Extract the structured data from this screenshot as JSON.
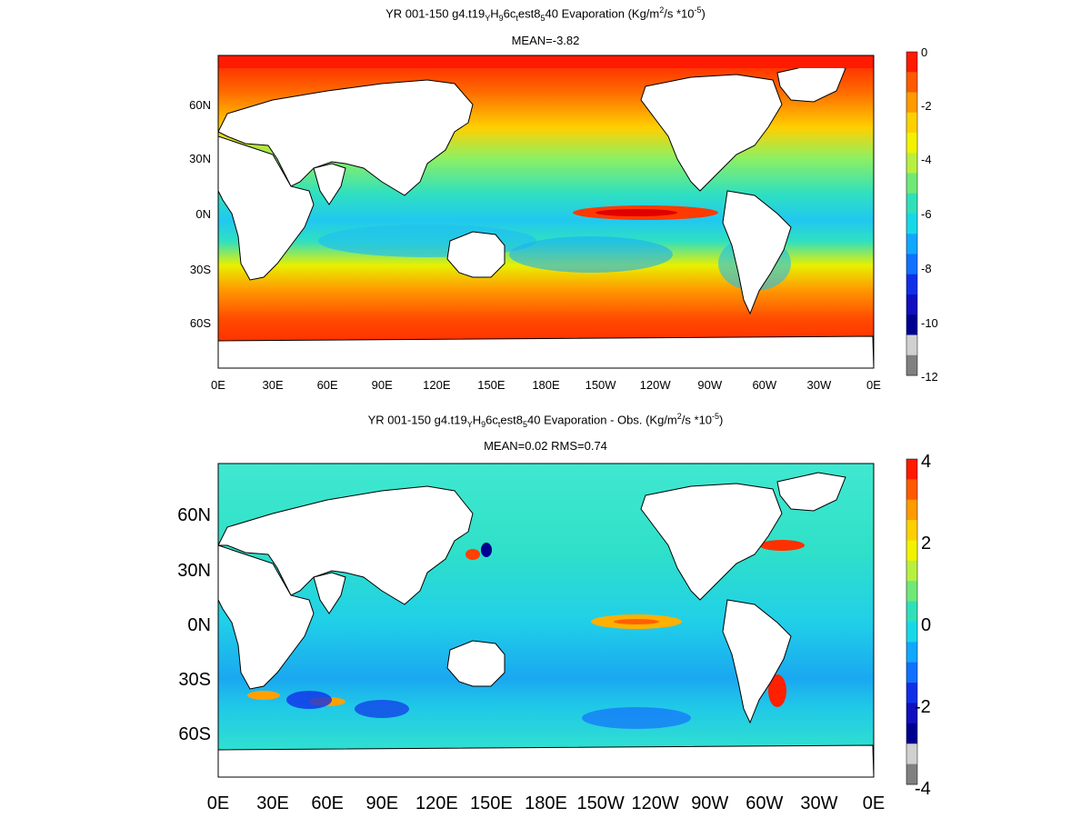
{
  "panels": [
    {
      "title_line1": {
        "prefix": "YR 001-150 g4.t19",
        "sub1": "Y",
        "mid1": "H",
        "sub2": "9",
        "mid2": "6c",
        "sub3": "t",
        "mid3": "est8",
        "sub4": "5",
        "mid4": "40  Evaporation (Kg/m",
        "sup1": "2",
        "mid5": "/s *10",
        "sup2": "-5",
        "suffix": ")"
      },
      "title_line2": "MEAN=-3.82",
      "y_ticks": [
        "60N",
        "30N",
        "0N",
        "30S",
        "60S"
      ],
      "x_ticks": [
        "0E",
        "30E",
        "60E",
        "90E",
        "120E",
        "150E",
        "180E",
        "150W",
        "120W",
        "90W",
        "60W",
        "30W",
        "0E"
      ],
      "colorbar_labels": [
        "0",
        "-2",
        "-4",
        "-6",
        "-8",
        "-10",
        "-12"
      ]
    },
    {
      "title_line1": {
        "prefix": "YR 001-150 g4.t19",
        "sub1": "Y",
        "mid1": "H",
        "sub2": "9",
        "mid2": "6c",
        "sub3": "t",
        "mid3": "est8",
        "sub4": "5",
        "mid4": "40 Evaporation - Obs. (Kg/m",
        "sup1": "2",
        "mid5": "/s *10",
        "sup2": "-5",
        "suffix": ")"
      },
      "title_line2": "MEAN=0.02   RMS=0.74",
      "y_ticks": [
        "60N",
        "30N",
        "0N",
        "30S",
        "60S"
      ],
      "x_ticks": [
        "0E",
        "30E",
        "60E",
        "90E",
        "120E",
        "150E",
        "180E",
        "150W",
        "120W",
        "90W",
        "60W",
        "30W",
        "0E"
      ],
      "colorbar_labels": [
        "4",
        "2",
        "0",
        "-2",
        "-4"
      ]
    }
  ],
  "colors": {
    "top_scale": [
      "#ff1a00",
      "#ff5a00",
      "#ff9a00",
      "#ffd000",
      "#f2f200",
      "#b8f040",
      "#70e878",
      "#30e0b8",
      "#18d8e8",
      "#10a8ff",
      "#1070ff",
      "#1030e8",
      "#1010c0",
      "#000090",
      "#d0d0d0",
      "#808080"
    ],
    "bottom_scale": [
      "#ff1a00",
      "#ff5a00",
      "#ff9a00",
      "#ffd000",
      "#f2f200",
      "#b8f040",
      "#70e878",
      "#30e0b8",
      "#18d8e8",
      "#10a8ff",
      "#1070ff",
      "#1030e8",
      "#1010c0",
      "#000090",
      "#d0d0d0",
      "#808080"
    ]
  }
}
